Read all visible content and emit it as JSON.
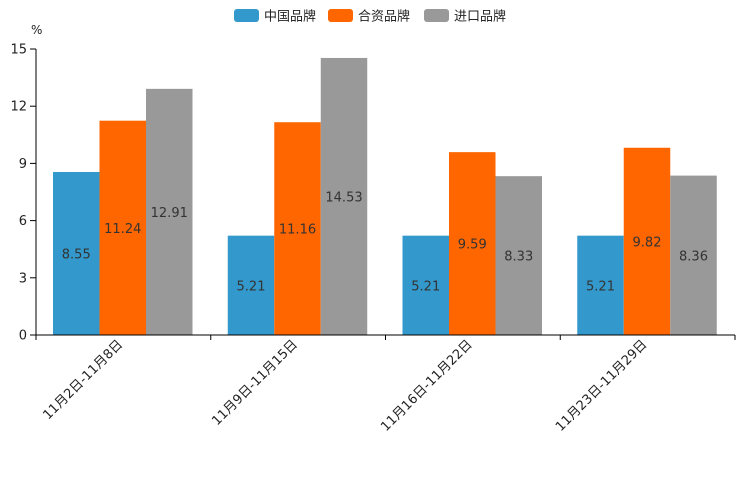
{
  "chart_data": {
    "type": "bar",
    "title": "",
    "ylabel": "%",
    "xlabel": "",
    "ylim": [
      0,
      15
    ],
    "yticks": [
      0,
      3,
      6,
      9,
      12,
      15
    ],
    "grid": false,
    "legend_position": "top-center",
    "categories": [
      "11月2日-11月8日",
      "11月9日-11月15日",
      "11月16日-11月22日",
      "11月23日-11月29日"
    ],
    "series": [
      {
        "name": "中国品牌",
        "color": "#3399cc",
        "values": [
          8.55,
          5.21,
          5.21,
          5.21
        ],
        "labels": [
          "8.55",
          "5.21",
          "5.21",
          "5.21"
        ]
      },
      {
        "name": "合资品牌",
        "color": "#ff6600",
        "values": [
          11.24,
          11.16,
          9.59,
          9.82
        ],
        "labels": [
          "11.24",
          "11.16",
          "9.59",
          "9.82"
        ]
      },
      {
        "name": "进口品牌",
        "color": "#999999",
        "values": [
          12.91,
          14.53,
          8.33,
          8.36
        ],
        "labels": [
          "12.91",
          "14.53",
          "8.33",
          "8.36"
        ]
      }
    ]
  }
}
